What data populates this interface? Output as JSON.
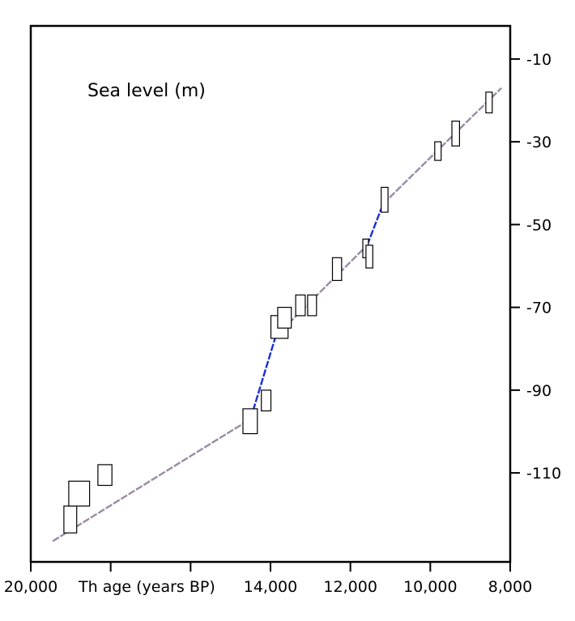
{
  "chart_data": {
    "type": "scatter",
    "title": "Sea level (m)",
    "xlabel": "Th age (years BP)",
    "ylabel": "",
    "x_reversed": true,
    "xlim": [
      20000,
      8000
    ],
    "ylim": [
      -131.5,
      -2
    ],
    "x_ticks": [
      20000,
      18000,
      16000,
      14000,
      12000,
      10000,
      8000
    ],
    "x_tick_labels": [
      "20,000",
      "",
      "",
      "14,000",
      "12,000",
      "10,000",
      "8,000"
    ],
    "x_tick_label_positions": [
      20000,
      14000,
      12000,
      10000,
      8000
    ],
    "y_ticks": [
      -10,
      -30,
      -50,
      -70,
      -90,
      -110
    ],
    "y_tick_labels": [
      "-10",
      "-30",
      "-50",
      "-70",
      "-90",
      "-110"
    ],
    "y_axis_side": "right",
    "grid": false,
    "series": [
      {
        "marker": "rectangle",
        "points": [
          {
            "x0": 19170,
            "x1": 18850,
            "y_top": -118,
            "y_bottom": -124.5
          },
          {
            "x0": 19050,
            "x1": 18530,
            "y_top": -112,
            "y_bottom": -118
          },
          {
            "x0": 18320,
            "x1": 17970,
            "y_top": -108,
            "y_bottom": -113
          },
          {
            "x0": 14690,
            "x1": 14330,
            "y_top": -94.5,
            "y_bottom": -100.5
          },
          {
            "x0": 14230,
            "x1": 13990,
            "y_top": -90,
            "y_bottom": -95
          },
          {
            "x0": 13990,
            "x1": 13560,
            "y_top": -72,
            "y_bottom": -77.5
          },
          {
            "x0": 13820,
            "x1": 13480,
            "y_top": -70,
            "y_bottom": -75
          },
          {
            "x0": 13370,
            "x1": 13130,
            "y_top": -67,
            "y_bottom": -72
          },
          {
            "x0": 13070,
            "x1": 12850,
            "y_top": -67,
            "y_bottom": -72
          },
          {
            "x0": 12450,
            "x1": 12220,
            "y_top": -58,
            "y_bottom": -63.5
          },
          {
            "x0": 11690,
            "x1": 11550,
            "y_top": -53.5,
            "y_bottom": -58
          },
          {
            "x0": 11610,
            "x1": 11440,
            "y_top": -55,
            "y_bottom": -60.5
          },
          {
            "x0": 11230,
            "x1": 11060,
            "y_top": -41,
            "y_bottom": -47
          },
          {
            "x0": 9890,
            "x1": 9730,
            "y_top": -30,
            "y_bottom": -34.5
          },
          {
            "x0": 9460,
            "x1": 9270,
            "y_top": -25,
            "y_bottom": -31
          },
          {
            "x0": 8610,
            "x1": 8450,
            "y_top": -18,
            "y_bottom": -23
          }
        ]
      }
    ],
    "trend_lines": [
      {
        "style": "dashed",
        "color": "#9a8aa6",
        "points": [
          [
            19450,
            -126.5
          ],
          [
            14500,
            -97
          ]
        ]
      },
      {
        "style": "dashed",
        "color": "#1a2fd6",
        "points": [
          [
            14500,
            -97
          ],
          [
            13870,
            -77
          ]
        ]
      },
      {
        "style": "dashed",
        "color": "#9a8aa6",
        "points": [
          [
            13870,
            -77
          ],
          [
            11580,
            -55
          ]
        ]
      },
      {
        "style": "dashed",
        "color": "#1a2fd6",
        "points": [
          [
            11580,
            -55
          ],
          [
            11180,
            -45
          ]
        ]
      },
      {
        "style": "dashed",
        "color": "#9a8aa6",
        "points": [
          [
            11180,
            -45
          ],
          [
            8220,
            -17
          ]
        ]
      }
    ],
    "colors": {
      "axis": "#000000",
      "box_fill": "#ffffff",
      "box_stroke": "#000000",
      "trend_main": "#9a8aa6",
      "trend_pulse": "#1a2fd6"
    }
  }
}
